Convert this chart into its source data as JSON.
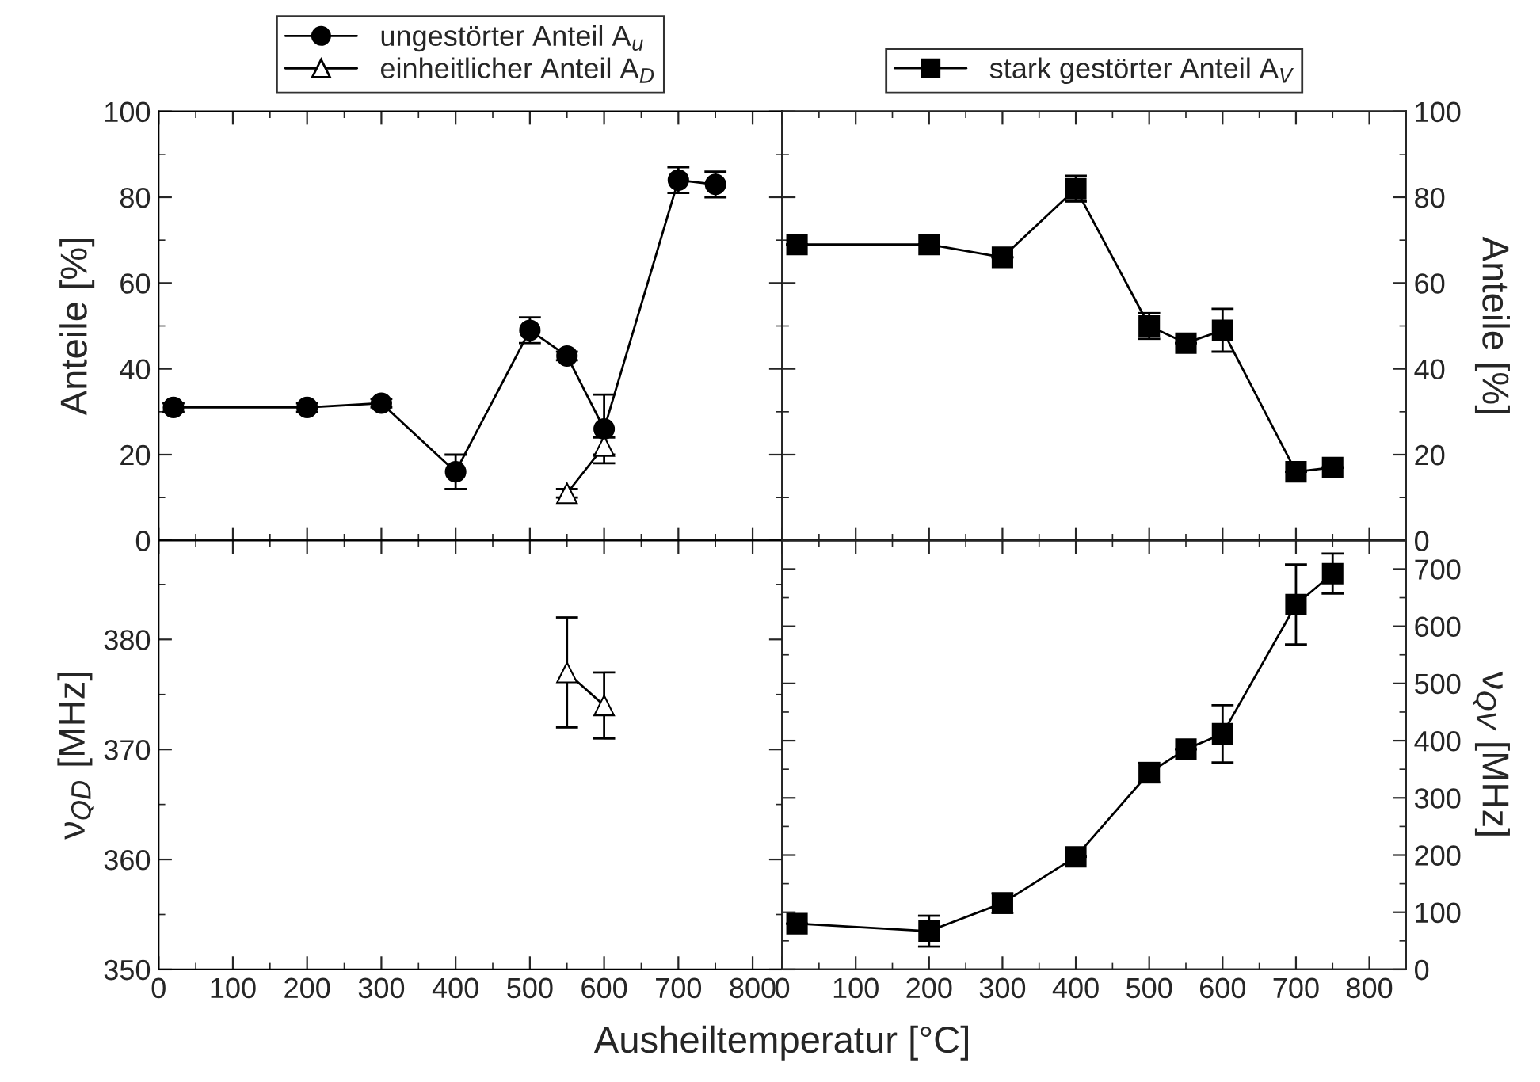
{
  "chart_data": [
    {
      "type": "line",
      "ylabel": "Anteile [%]",
      "xlim": [
        0,
        840
      ],
      "xticks": [
        0,
        100,
        200,
        300,
        400,
        500,
        600,
        700,
        800
      ],
      "ylim": [
        0,
        100
      ],
      "yticks": [
        0,
        20,
        40,
        60,
        80,
        100
      ],
      "tick_labels": "y",
      "legend": "top",
      "grid": false,
      "series": [
        {
          "name": "ungestörter Anteil A$_{u}$",
          "color": "#000000",
          "marker": "circle",
          "x": [
            20,
            200,
            300,
            400,
            500,
            550,
            600,
            700,
            750
          ],
          "values": [
            31,
            31,
            32,
            16,
            49,
            43,
            26,
            84,
            83
          ],
          "errors": [
            1,
            1,
            1,
            4,
            3,
            1,
            8,
            3,
            3
          ]
        },
        {
          "name": "einheitlicher Anteil A$_{D}$",
          "color": "#000000",
          "marker": "triangle",
          "x": [
            550,
            600
          ],
          "values": [
            11,
            22
          ],
          "errors": [
            1,
            2
          ]
        }
      ]
    },
    {
      "type": "line",
      "y2label": "Anteile [%]",
      "xlim": [
        0,
        850
      ],
      "xticks": [
        0,
        100,
        200,
        300,
        400,
        500,
        600,
        700,
        800
      ],
      "y2lim": [
        0,
        100
      ],
      "y2ticks": [
        0,
        20,
        40,
        60,
        80,
        100
      ],
      "tick_labels": "y",
      "legend": "top",
      "grid": false,
      "series": [
        {
          "name": "stark gestörter Anteil A$_{V}$",
          "color": "#000000",
          "marker": "square",
          "axis": "y2",
          "x": [
            20,
            200,
            300,
            400,
            500,
            550,
            600,
            700,
            750
          ],
          "values": [
            69,
            69,
            66,
            82,
            50,
            46,
            49,
            16,
            17
          ],
          "errors": [
            null,
            null,
            null,
            3,
            3,
            null,
            5,
            null,
            null
          ]
        }
      ]
    },
    {
      "type": "line",
      "ylabel": "ν$_{QD}$ [MHz]",
      "xlabel": "Ausheiltemperatur [°C]",
      "xlim": [
        0,
        840
      ],
      "xticks": [
        0,
        100,
        200,
        300,
        400,
        500,
        600,
        700,
        800
      ],
      "ylim": [
        350,
        389
      ],
      "yticks": [
        350,
        360,
        370,
        380
      ],
      "grid": false,
      "series": [
        {
          "color": "#000000",
          "marker": "triangle",
          "x": [
            550,
            600
          ],
          "values": [
            377,
            374
          ],
          "errors": [
            5,
            3
          ]
        }
      ]
    },
    {
      "type": "line",
      "y2label": "ν$_{QV}$ [MHz]",
      "xlim": [
        0,
        850
      ],
      "xticks": [
        0,
        100,
        200,
        300,
        400,
        500,
        600,
        700,
        800
      ],
      "y2lim": [
        0,
        750
      ],
      "y2ticks": [
        0,
        100,
        200,
        300,
        400,
        500,
        600,
        700
      ],
      "grid": false,
      "series": [
        {
          "color": "#000000",
          "marker": "square",
          "axis": "y2",
          "x": [
            20,
            200,
            300,
            400,
            500,
            550,
            600,
            700,
            750
          ],
          "values": [
            80,
            67,
            116,
            197,
            344,
            385,
            412,
            638,
            692
          ],
          "errors": [
            null,
            27,
            17,
            null,
            17,
            null,
            50,
            70,
            35
          ]
        }
      ]
    }
  ]
}
